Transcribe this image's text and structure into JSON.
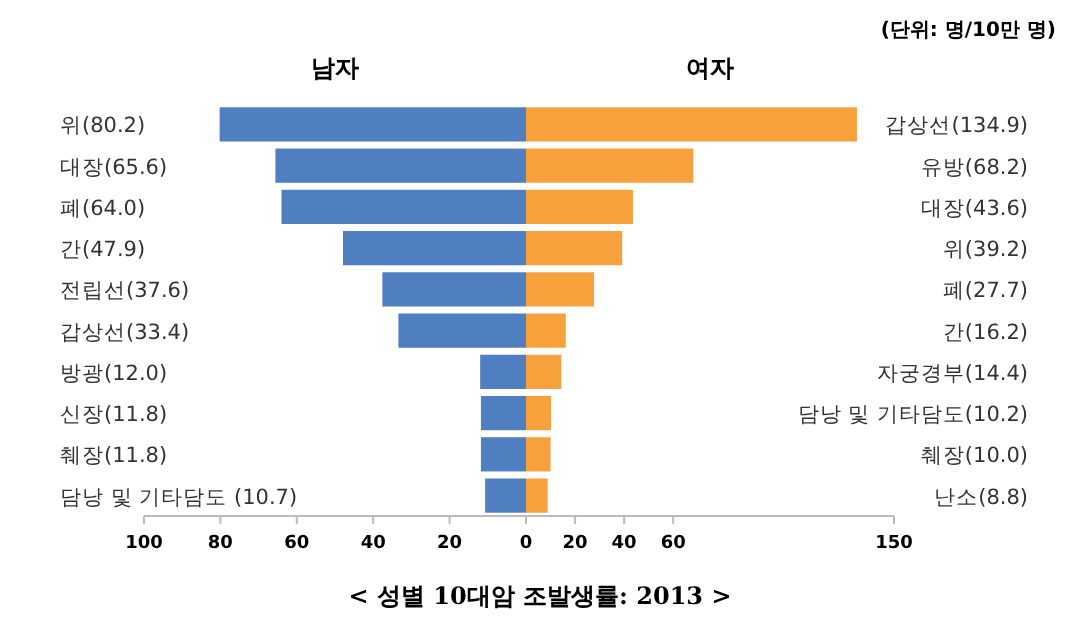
{
  "chart_data": [
    {
      "type": "bar",
      "orientation": "horizontal",
      "title": "남자",
      "categories": [
        "위(80.2)",
        "대장(65.6)",
        "폐(64.0)",
        "간(47.9)",
        "전립선(37.6)",
        "갑상선(33.4)",
        "방광(12.0)",
        "신장(11.8)",
        "췌장(11.8)",
        "담낭 및 기타담도 (10.7)"
      ],
      "values": [
        80.2,
        65.6,
        64.0,
        47.9,
        37.6,
        33.4,
        12.0,
        11.8,
        11.8,
        10.7
      ],
      "color": "#4f7fc0",
      "xlim": [
        100,
        0
      ],
      "xticks": [
        100,
        80,
        60,
        40,
        20,
        0
      ],
      "grid": false,
      "annotations": [
        "< 성별 10대암 조발생률: 2013 >"
      ]
    },
    {
      "type": "bar",
      "orientation": "horizontal",
      "title": "여자",
      "categories": [
        "갑상선(134.9)",
        "유방(68.2)",
        "대장(43.6)",
        "위(39.2)",
        "폐(27.7)",
        "간(16.2)",
        "자궁경부(14.4)",
        "담낭 및 기타담도(10.2)",
        "췌장(10.0)",
        "난소(8.8)"
      ],
      "values": [
        134.9,
        68.2,
        43.6,
        39.2,
        27.7,
        16.2,
        14.4,
        10.2,
        10.0,
        8.8
      ],
      "color": "#f7a03c",
      "xlim": [
        0,
        150
      ],
      "xticks": [
        {
          "value": 0,
          "label": null
        },
        20,
        40,
        60,
        150
      ],
      "grid": false,
      "annotations": [
        "(단위: 명/10만 명)"
      ]
    }
  ]
}
